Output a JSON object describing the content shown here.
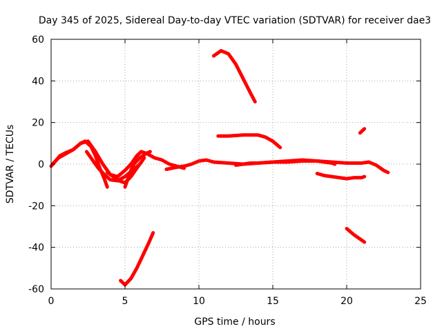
{
  "chart_data": {
    "type": "line",
    "title": "Day 345 of 2025, Sidereal Day-to-day VTEC variation (SDTVAR) for receiver dae3",
    "xlabel": "GPS time / hours",
    "ylabel": "SDTVAR / TECUs",
    "xlim": [
      0,
      25
    ],
    "ylim": [
      -60,
      60
    ],
    "xticks": [
      0,
      5,
      10,
      15,
      20,
      25
    ],
    "yticks": [
      -60,
      -40,
      -20,
      0,
      20,
      40,
      60
    ],
    "xtick_labels": [
      "0",
      "5",
      "10",
      "15",
      "20",
      "25"
    ],
    "ytick_labels": [
      "-60",
      "-40",
      "-20",
      "0",
      "20",
      "40",
      "60"
    ],
    "grid": true,
    "legend": "none",
    "color": "#ff0000",
    "series": [
      {
        "name": "trace-1",
        "x": [
          0.0,
          0.3,
          0.6,
          1.0,
          1.5,
          2.0,
          2.3,
          2.7,
          3.0,
          3.3,
          3.6,
          3.8
        ],
        "y": [
          -1.0,
          1.5,
          4.0,
          5.5,
          7.0,
          10.0,
          11.0,
          8.5,
          4.0,
          -2.0,
          -7.0,
          -11.0
        ]
      },
      {
        "name": "trace-2",
        "x": [
          0.1,
          0.5,
          1.0,
          1.5,
          2.0,
          2.5,
          3.0,
          3.5,
          4.0,
          4.5,
          5.0,
          5.4,
          5.8,
          6.1,
          6.5,
          7.0,
          7.5,
          8.0,
          8.5,
          9.0
        ],
        "y": [
          0.0,
          3.0,
          5.0,
          7.0,
          10.0,
          11.0,
          6.0,
          0.0,
          -5.0,
          -6.0,
          -3.0,
          0.0,
          4.0,
          6.0,
          5.0,
          3.0,
          2.0,
          0.0,
          -1.0,
          -2.0
        ]
      },
      {
        "name": "trace-3",
        "x": [
          2.4,
          2.8,
          3.2,
          3.6,
          4.0,
          4.5,
          5.0,
          5.5,
          6.0,
          6.3
        ],
        "y": [
          6.0,
          2.0,
          -2.0,
          -5.0,
          -7.5,
          -8.0,
          -6.0,
          -3.0,
          0.0,
          3.0
        ]
      },
      {
        "name": "trace-4",
        "x": [
          3.8,
          4.2,
          4.6,
          5.0,
          5.4,
          5.8,
          6.2
        ],
        "y": [
          -4.0,
          -6.0,
          -8.0,
          -9.0,
          -6.0,
          -2.0,
          2.0
        ]
      },
      {
        "name": "trace-5",
        "x": [
          5.0,
          5.2,
          5.4,
          5.6,
          6.0,
          6.4,
          6.7
        ],
        "y": [
          -11.0,
          -7.0,
          -3.0,
          0.0,
          3.0,
          5.0,
          6.0
        ]
      },
      {
        "name": "trace-6",
        "x": [
          7.8,
          8.5,
          9.0,
          9.5,
          10.0,
          10.5,
          11.0,
          12.0,
          13.0,
          14.0,
          15.0,
          16.0,
          17.0,
          18.0,
          19.0,
          20.0,
          21.0,
          21.5
        ],
        "y": [
          -2.5,
          -1.5,
          -1.0,
          0.0,
          1.5,
          2.0,
          1.0,
          0.5,
          0.0,
          0.5,
          1.0,
          1.5,
          2.0,
          1.5,
          1.0,
          0.5,
          0.5,
          1.0
        ]
      },
      {
        "name": "trace-7",
        "x": [
          12.5,
          13.0,
          13.5,
          14.0,
          15.0,
          16.0,
          17.0,
          18.0,
          18.5,
          19.0,
          19.2
        ],
        "y": [
          -0.5,
          0.0,
          0.5,
          0.5,
          1.0,
          1.0,
          1.5,
          1.5,
          1.0,
          0.5,
          0.0
        ]
      },
      {
        "name": "trace-8",
        "x": [
          11.3,
          12.0,
          13.0,
          14.0,
          14.5,
          15.0,
          15.5
        ],
        "y": [
          13.5,
          13.5,
          14.0,
          14.0,
          13.0,
          11.0,
          8.0
        ]
      },
      {
        "name": "trace-9",
        "x": [
          11.0,
          11.5,
          12.0,
          12.5,
          13.0,
          13.5,
          13.8
        ],
        "y": [
          52.0,
          54.5,
          53.0,
          48.0,
          41.0,
          34.0,
          30.0
        ]
      },
      {
        "name": "trace-10",
        "x": [
          4.7,
          5.0,
          5.4,
          5.8,
          6.2,
          6.6,
          6.9
        ],
        "y": [
          -56.0,
          -58.0,
          -55.0,
          -50.0,
          -44.0,
          -38.0,
          -33.0
        ]
      },
      {
        "name": "trace-11",
        "x": [
          18.0,
          18.5,
          19.0,
          19.5,
          20.0,
          20.5,
          21.0,
          21.2
        ],
        "y": [
          -4.5,
          -5.5,
          -6.0,
          -6.5,
          -7.0,
          -6.5,
          -6.5,
          -6.0
        ]
      },
      {
        "name": "trace-12",
        "x": [
          21.5,
          22.0,
          22.5,
          22.8
        ],
        "y": [
          1.0,
          -0.5,
          -3.0,
          -4.0
        ]
      },
      {
        "name": "trace-13",
        "x": [
          20.0,
          20.5,
          21.0,
          21.2
        ],
        "y": [
          -31.0,
          -34.0,
          -36.5,
          -37.5
        ]
      },
      {
        "name": "trace-14",
        "x": [
          20.9,
          21.2
        ],
        "y": [
          15.0,
          17.0
        ]
      }
    ]
  }
}
